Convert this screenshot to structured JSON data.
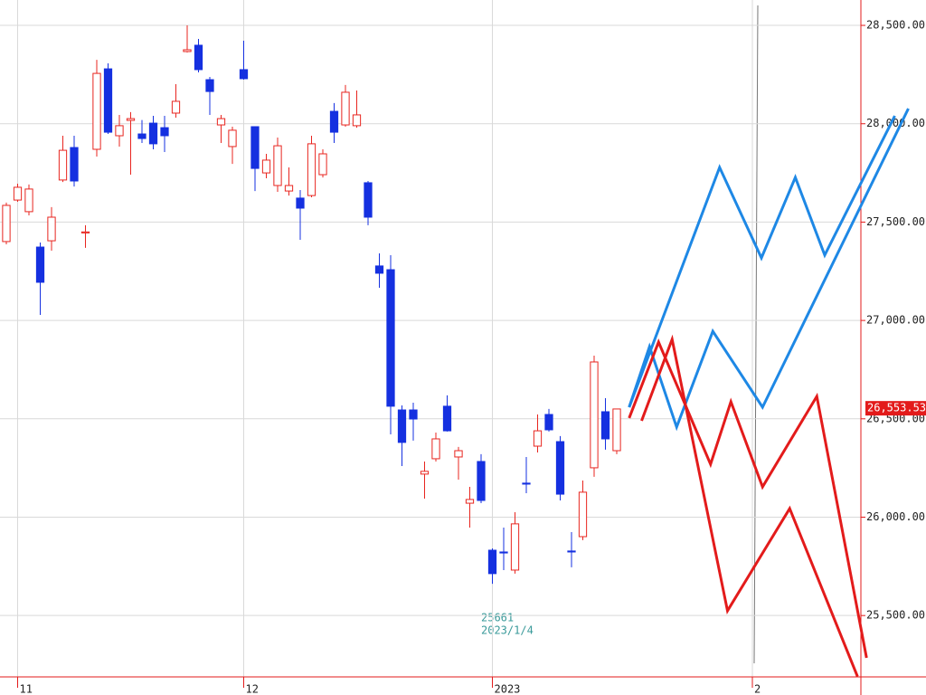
{
  "chart_data": {
    "type": "candlestick",
    "open": [
      27401,
      27612,
      27553,
      27373,
      27405,
      27714,
      27879,
      27445,
      27870,
      28279,
      27939,
      28017,
      27948,
      28003,
      27980,
      28054,
      28367,
      28399,
      28224,
      27994,
      27884,
      28275,
      27985,
      27750,
      27686,
      27658,
      27622,
      27635,
      27741,
      28063,
      27994,
      27990,
      27700,
      27277,
      27258,
      26545,
      26545,
      26219,
      26297,
      26564,
      26306,
      26071,
      26283,
      25832,
      25823,
      25731,
      26173,
      26361,
      26522,
      26384,
      25828,
      25901,
      26251,
      26536,
      26338
    ],
    "high": [
      27599,
      27695,
      27691,
      27396,
      27576,
      27939,
      27939,
      27484,
      28325,
      28307,
      28045,
      28059,
      28019,
      28040,
      28040,
      28201,
      28500,
      28431,
      28238,
      28045,
      27985,
      28422,
      27985,
      27847,
      27930,
      27778,
      27663,
      27939,
      27870,
      28105,
      28197,
      28169,
      27709,
      27341,
      27332,
      26568,
      26582,
      26283,
      26430,
      26619,
      26357,
      26154,
      26320,
      25841,
      25947,
      26025,
      26306,
      26522,
      26550,
      26412,
      25924,
      26186,
      26821,
      26605,
      26550
    ],
    "low": [
      27387,
      27603,
      27534,
      27028,
      27355,
      27704,
      27681,
      27369,
      27833,
      27948,
      27884,
      27741,
      27902,
      27870,
      27856,
      28031,
      28362,
      28261,
      28045,
      27902,
      27796,
      28224,
      27658,
      27723,
      27654,
      27635,
      27410,
      27626,
      27727,
      27902,
      27985,
      27980,
      27484,
      27166,
      26421,
      26260,
      26389,
      26094,
      26283,
      26435,
      26191,
      25947,
      26071,
      25661,
      25731,
      25713,
      26122,
      26329,
      26435,
      26085,
      25745,
      25883,
      26205,
      26343,
      26320
    ],
    "close": [
      27585,
      27677,
      27668,
      27194,
      27525,
      27865,
      27709,
      27450,
      28256,
      27957,
      27990,
      28026,
      27925,
      27898,
      27939,
      28114,
      28376,
      28275,
      28164,
      28026,
      27967,
      28229,
      27773,
      27815,
      27888,
      27686,
      27571,
      27898,
      27847,
      27957,
      28160,
      28045,
      27525,
      27240,
      26564,
      26380,
      26499,
      26233,
      26398,
      26439,
      26338,
      26090,
      26085,
      25713,
      25818,
      25966,
      26168,
      26439,
      26444,
      26117,
      25823,
      26127,
      26789,
      26398,
      26550
    ],
    "up_color": "#e8251f",
    "down_color": "#1530e0",
    "projections": [
      {
        "color": "#1e88e5",
        "x": [
          55.1,
          56.9,
          59.3,
          62.5,
          66.9,
          79.8
        ],
        "values": [
          26559,
          26867,
          26458,
          26945,
          26559,
          28077
        ]
      },
      {
        "color": "#1e88e5",
        "x": [
          55.1,
          63.1,
          66.8,
          69.8,
          72.4,
          78.6
        ],
        "values": [
          26559,
          27778,
          27318,
          27727,
          27332,
          28040
        ]
      },
      {
        "color": "#e31b1b",
        "x": [
          55.1,
          57.7,
          62.3,
          64.1,
          66.9,
          71.7,
          76.1
        ],
        "values": [
          26504,
          26890,
          26269,
          26587,
          26154,
          26614,
          25285
        ]
      },
      {
        "color": "#e31b1b",
        "x": [
          56.2,
          58.9,
          63.8,
          69.3,
          75.3
        ],
        "values": [
          26490,
          26904,
          25524,
          26044,
          25190
        ]
      }
    ],
    "xlim": [
      -0.56,
      75.6
    ],
    "xticks": [
      {
        "value": 1,
        "label": "11"
      },
      {
        "value": 21,
        "label": "12"
      },
      {
        "value": 43,
        "label": "2023"
      },
      {
        "value": 66,
        "label": "2"
      }
    ],
    "ylim": [
      25188,
      28629
    ],
    "yticks": [
      {
        "value": 25500,
        "label": "25,500.00"
      },
      {
        "value": 26000,
        "label": "26,000.00"
      },
      {
        "value": 26500,
        "label": "26,500.00"
      },
      {
        "value": 27000,
        "label": "27,000.00"
      },
      {
        "value": 27500,
        "label": "27,500.00"
      },
      {
        "value": 28000,
        "label": "28,000.00"
      },
      {
        "value": 28500,
        "label": "28,500.00"
      }
    ],
    "last_price": {
      "value": 26553.53,
      "label": "26,553.53"
    },
    "annotation": {
      "value": "25661",
      "date": "2023/1/4"
    },
    "grid": true
  }
}
